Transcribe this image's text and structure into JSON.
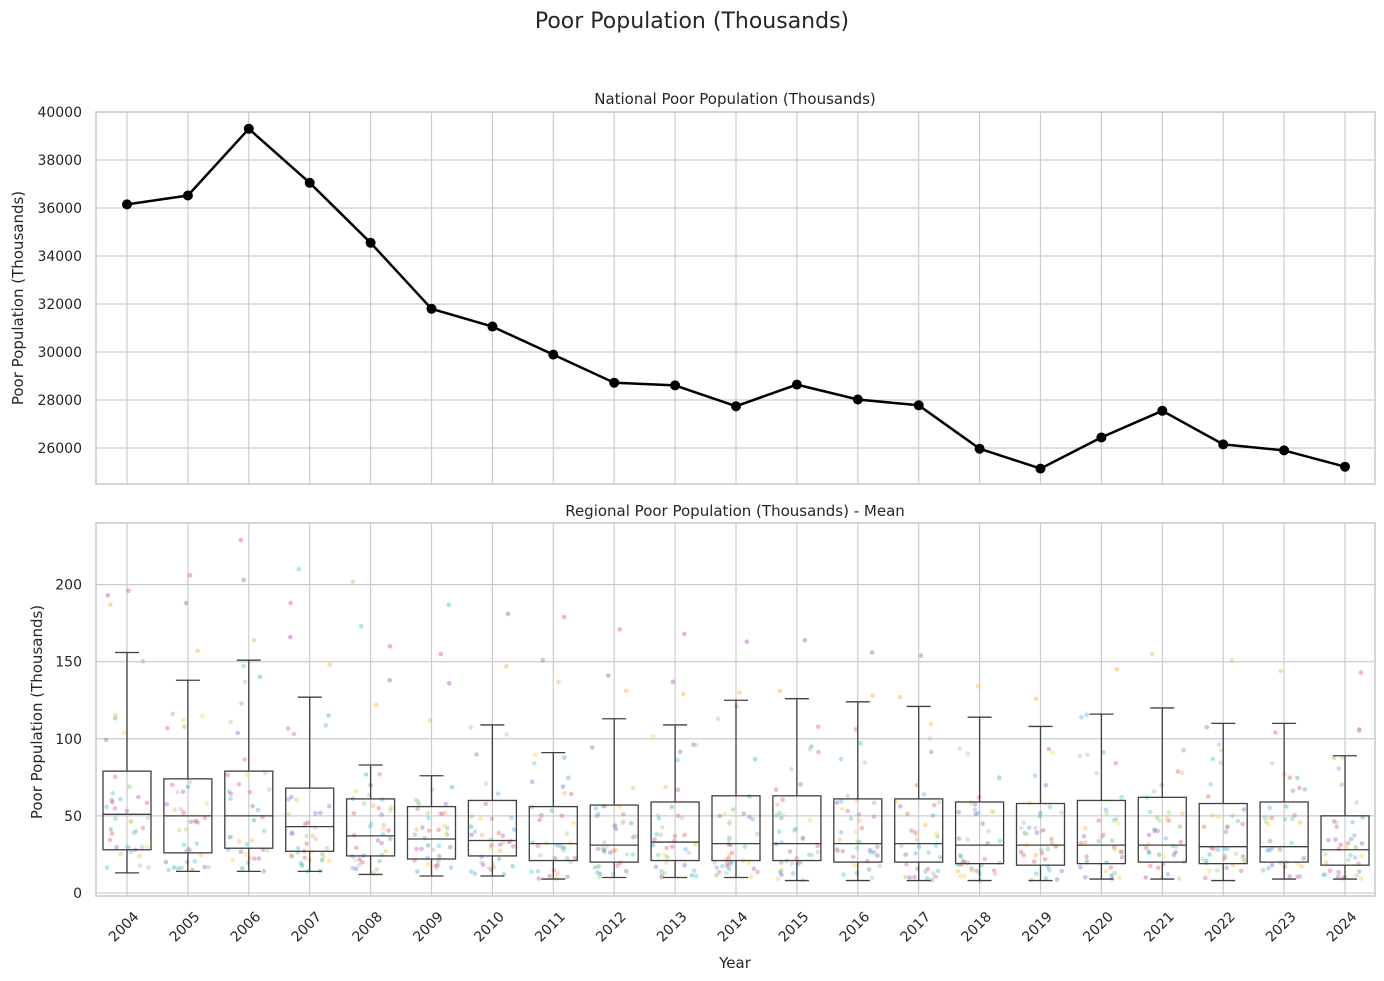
{
  "figure": {
    "suptitle": "Poor Population (Thousands)"
  },
  "chart_data": [
    {
      "type": "line",
      "title": "National Poor Population (Thousands)",
      "xlabel": "",
      "ylabel": "Poor Population (Thousands)",
      "x": [
        2004,
        2005,
        2006,
        2007,
        2008,
        2009,
        2010,
        2011,
        2012,
        2013,
        2014,
        2015,
        2016,
        2017,
        2018,
        2019,
        2020,
        2021,
        2022,
        2023,
        2024
      ],
      "y": [
        36150,
        36520,
        39300,
        37050,
        34550,
        31800,
        31060,
        29890,
        28720,
        28610,
        27740,
        28640,
        28020,
        27780,
        25970,
        25140,
        26440,
        27550,
        26150,
        25900,
        25220
      ],
      "ylim": [
        24500,
        40000
      ],
      "yticks": [
        26000,
        28000,
        30000,
        32000,
        34000,
        36000,
        38000,
        40000
      ],
      "color": "#000000",
      "grid": true
    },
    {
      "type": "box",
      "title": "Regional Poor Population (Thousands) - Mean",
      "xlabel": "Year",
      "ylabel": "Poor Population (Thousands)",
      "categories": [
        "2004",
        "2005",
        "2006",
        "2007",
        "2008",
        "2009",
        "2010",
        "2011",
        "2012",
        "2013",
        "2014",
        "2015",
        "2016",
        "2017",
        "2018",
        "2019",
        "2020",
        "2021",
        "2022",
        "2023",
        "2024"
      ],
      "ylim": [
        -2,
        240
      ],
      "yticks": [
        0,
        50,
        100,
        150,
        200
      ],
      "boxes": [
        {
          "whisker_low": 13,
          "q1": 28,
          "median": 51,
          "q3": 79,
          "whisker_high": 156
        },
        {
          "whisker_low": 14,
          "q1": 26,
          "median": 50,
          "q3": 74,
          "whisker_high": 138
        },
        {
          "whisker_low": 14,
          "q1": 29,
          "median": 50,
          "q3": 79,
          "whisker_high": 151
        },
        {
          "whisker_low": 14,
          "q1": 27,
          "median": 43,
          "q3": 68,
          "whisker_high": 127
        },
        {
          "whisker_low": 12,
          "q1": 24,
          "median": 37,
          "q3": 61,
          "whisker_high": 83
        },
        {
          "whisker_low": 11,
          "q1": 22,
          "median": 35,
          "q3": 56,
          "whisker_high": 76
        },
        {
          "whisker_low": 11,
          "q1": 24,
          "median": 34,
          "q3": 60,
          "whisker_high": 109
        },
        {
          "whisker_low": 9,
          "q1": 21,
          "median": 32,
          "q3": 56,
          "whisker_high": 91
        },
        {
          "whisker_low": 10,
          "q1": 20,
          "median": 31,
          "q3": 57,
          "whisker_high": 113
        },
        {
          "whisker_low": 10,
          "q1": 21,
          "median": 33,
          "q3": 59,
          "whisker_high": 109
        },
        {
          "whisker_low": 10,
          "q1": 21,
          "median": 32,
          "q3": 63,
          "whisker_high": 125
        },
        {
          "whisker_low": 8,
          "q1": 21,
          "median": 32,
          "q3": 63,
          "whisker_high": 126
        },
        {
          "whisker_low": 8,
          "q1": 20,
          "median": 32,
          "q3": 61,
          "whisker_high": 124
        },
        {
          "whisker_low": 8,
          "q1": 20,
          "median": 32,
          "q3": 61,
          "whisker_high": 121
        },
        {
          "whisker_low": 8,
          "q1": 19,
          "median": 31,
          "q3": 59,
          "whisker_high": 114
        },
        {
          "whisker_low": 8,
          "q1": 18,
          "median": 31,
          "q3": 58,
          "whisker_high": 108
        },
        {
          "whisker_low": 9,
          "q1": 19,
          "median": 31,
          "q3": 60,
          "whisker_high": 116
        },
        {
          "whisker_low": 9,
          "q1": 20,
          "median": 31,
          "q3": 62,
          "whisker_high": 120
        },
        {
          "whisker_low": 8,
          "q1": 19,
          "median": 30,
          "q3": 58,
          "whisker_high": 110
        },
        {
          "whisker_low": 9,
          "q1": 20,
          "median": 30,
          "q3": 59,
          "whisker_high": 110
        },
        {
          "whisker_low": 9,
          "q1": 18,
          "median": 28,
          "q3": 50,
          "whisker_high": 89
        }
      ],
      "outliers": [
        [
          187,
          193,
          196
        ],
        [
          157,
          188,
          206
        ],
        [
          164,
          203,
          229
        ],
        [
          148,
          166,
          188,
          210
        ],
        [
          122,
          138,
          160,
          173,
          202
        ],
        [
          112,
          136,
          155,
          187
        ],
        [
          147,
          181
        ],
        [
          137,
          151,
          179
        ],
        [
          131,
          141,
          171
        ],
        [
          129,
          137,
          168
        ],
        [
          130,
          163
        ],
        [
          131,
          164
        ],
        [
          128,
          156
        ],
        [
          127,
          154
        ],
        [
          134
        ],
        [
          126
        ],
        [
          145
        ],
        [
          155
        ],
        [
          151
        ],
        [
          144
        ],
        [
          105,
          106,
          143
        ]
      ],
      "grid": true
    }
  ]
}
